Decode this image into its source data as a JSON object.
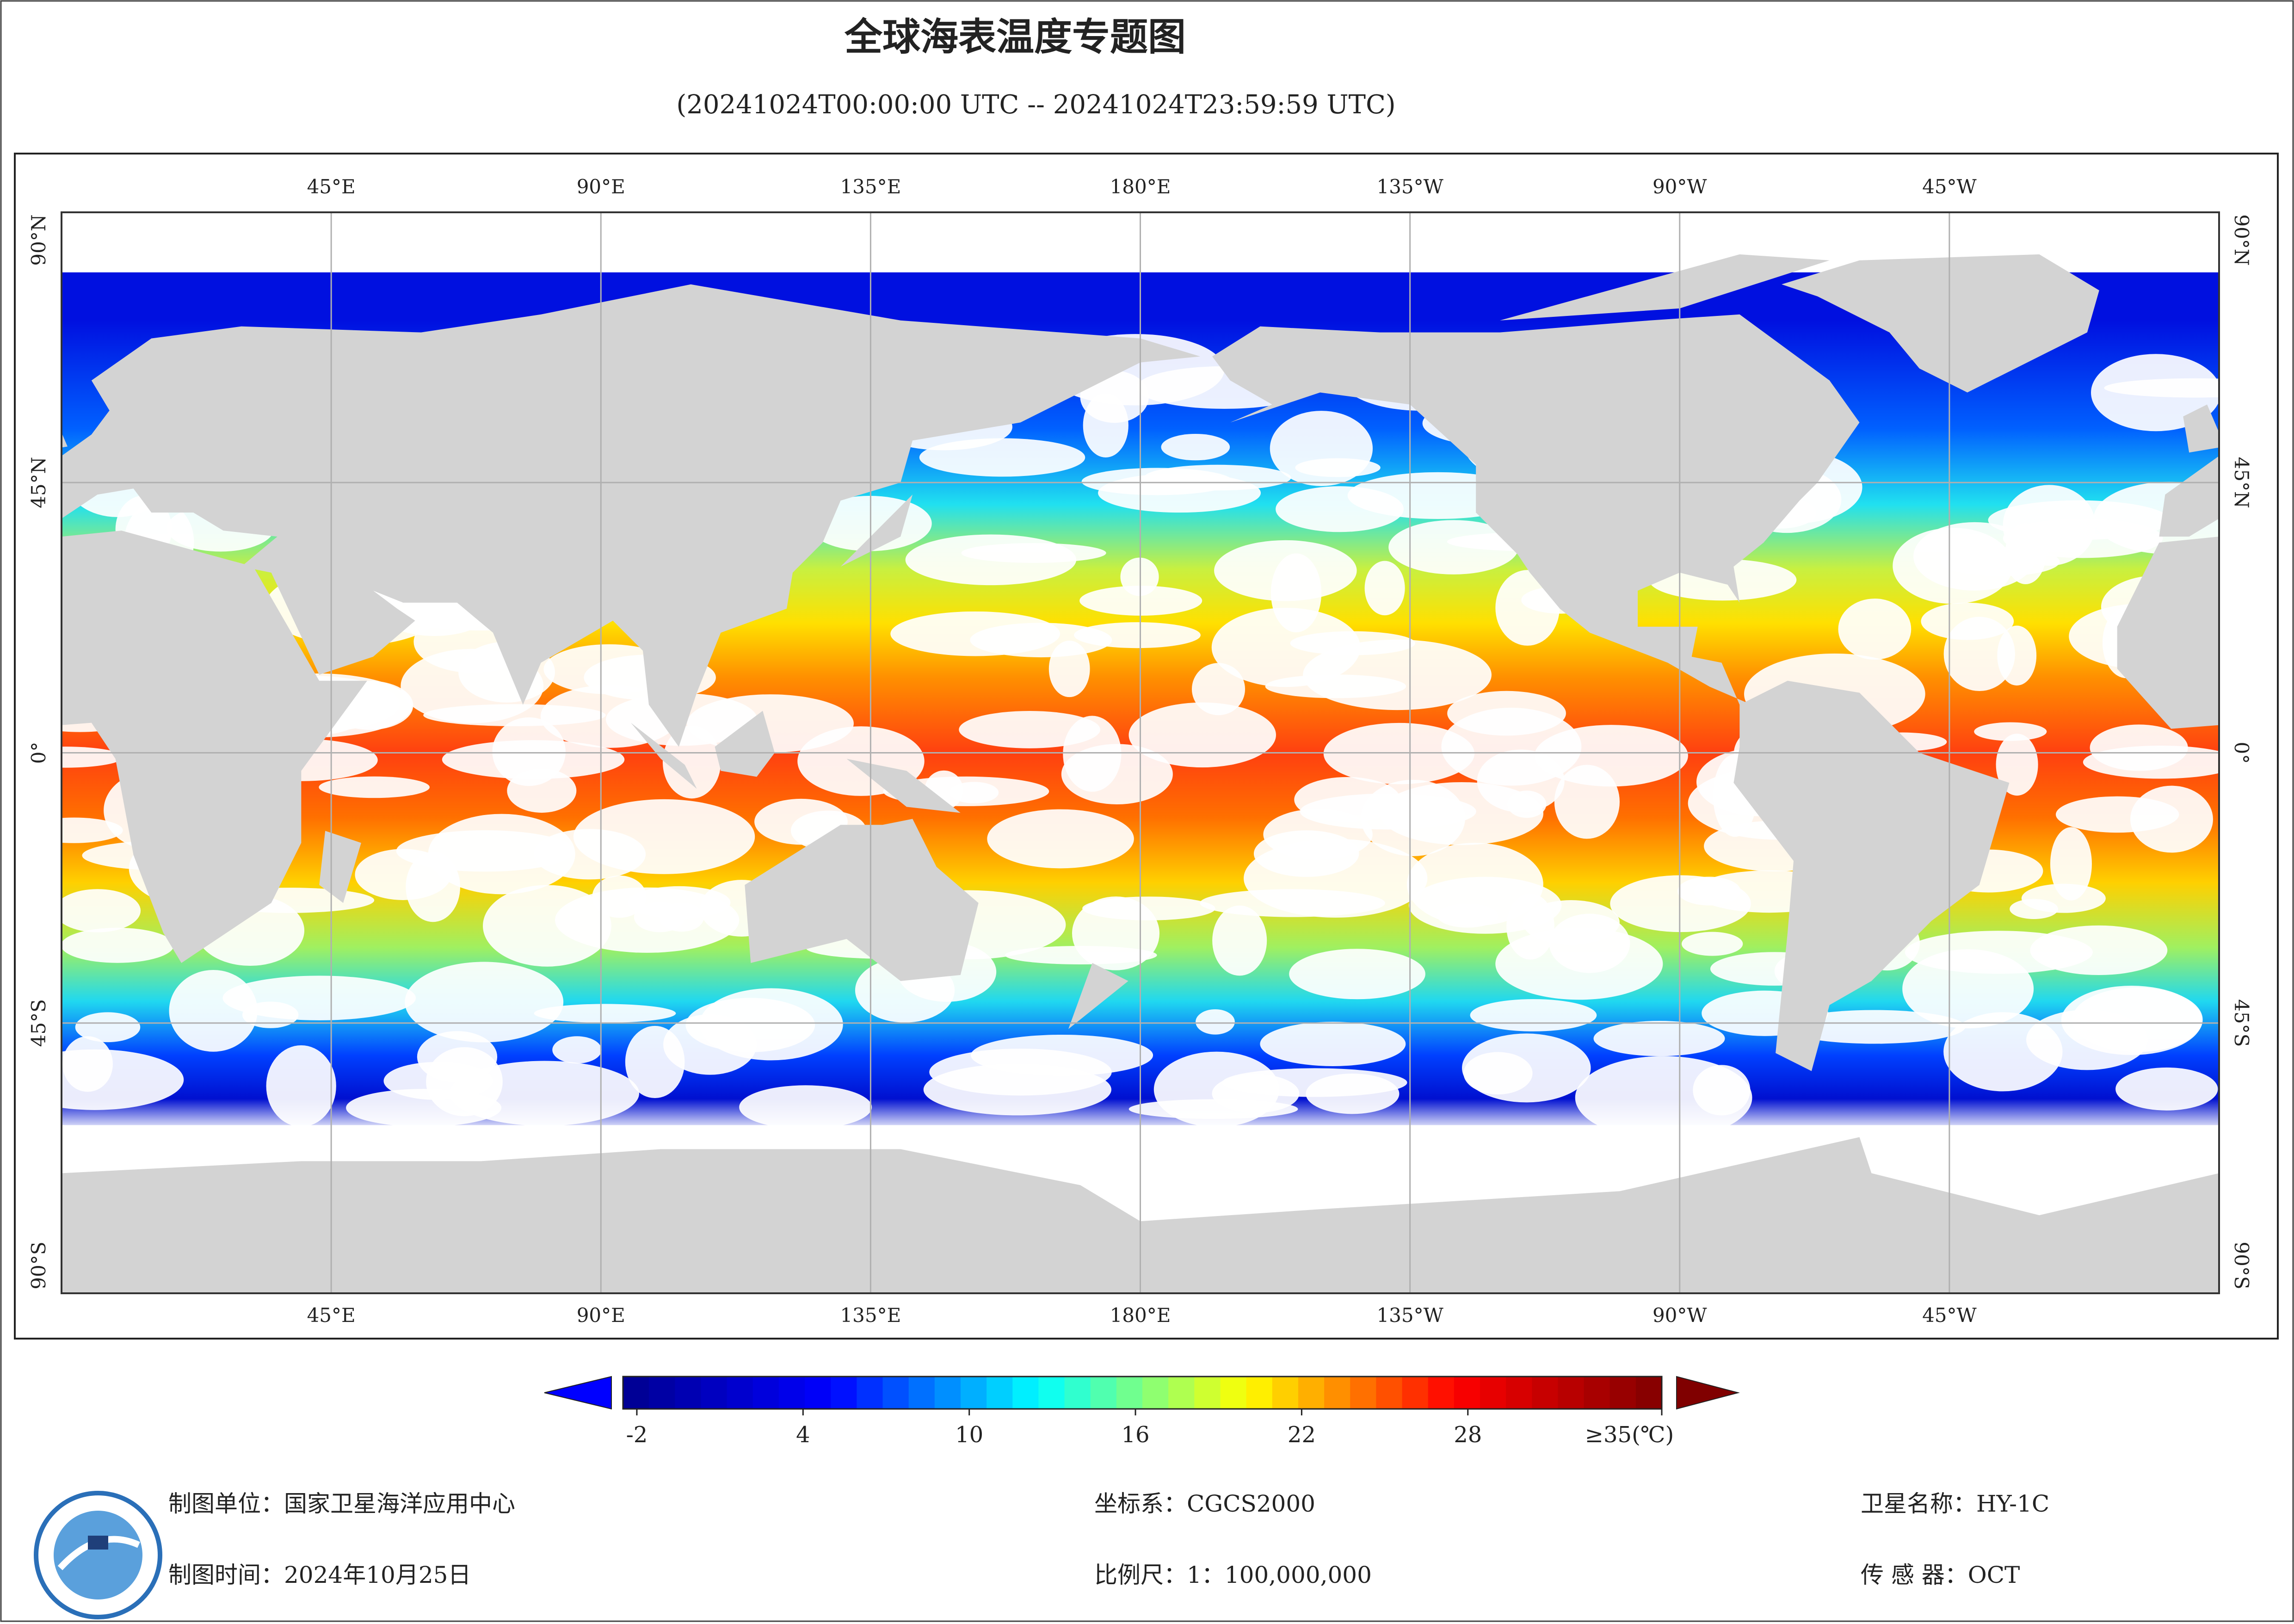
{
  "title": "全球海表温度专题图",
  "subtitle": "(20241024T00:00:00 UTC -- 20241024T23:59:59 UTC)",
  "map": {
    "lon_labels": [
      "45°E",
      "90°E",
      "135°E",
      "180°E",
      "135°W",
      "90°W",
      "45°W"
    ],
    "lat_labels": [
      "90°N",
      "45°N",
      "0°",
      "45°S",
      "90°S"
    ]
  },
  "colorbar": {
    "range": [
      -2.5,
      35
    ],
    "ticks": [
      -2,
      4,
      10,
      16,
      22,
      28,
      {
        "value": 35,
        "label": "≥35(℃)"
      }
    ],
    "colors": [
      "#00008f",
      "#0000ff",
      "#00ffff",
      "#ffff00",
      "#ff0000",
      "#800000"
    ]
  },
  "footer": {
    "unit": "制图单位：国家卫星海洋应用中心",
    "time": "制图时间：2024年10月25日",
    "crs": "坐标系：CGCS2000",
    "scale": "比例尺：1：100,000,000",
    "satellite": "卫星名称：HY-1C",
    "sensor": "传 感 器：OCT"
  }
}
